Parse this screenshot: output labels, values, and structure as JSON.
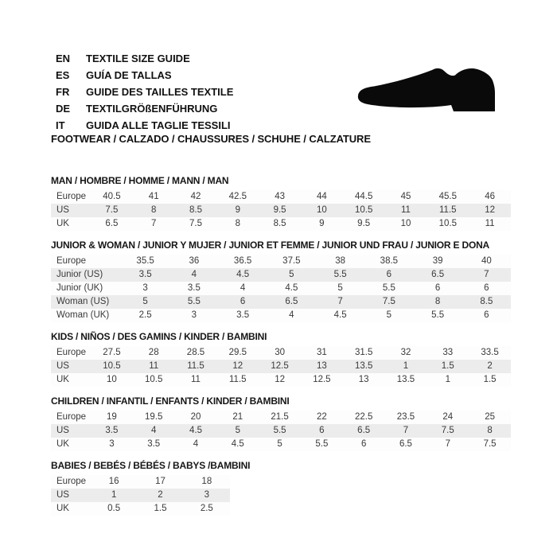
{
  "header": {
    "languages": [
      {
        "code": "EN",
        "text": "TEXTILE SIZE GUIDE"
      },
      {
        "code": "ES",
        "text": "GUÍA DE TALLAS"
      },
      {
        "code": "FR",
        "text": "GUIDE DES TAILLES TEXTILE"
      },
      {
        "code": "DE",
        "text": "TEXTILGRÖßENFÜHRUNG"
      },
      {
        "code": "IT",
        "text": "GUIDA ALLE TAGLIE TESSILI"
      }
    ],
    "category_title": "FOOTWEAR / CALZADO / CHAUSSURES / SCHUHE / CALZATURE",
    "shoe_icon": "dress-shoe-silhouette"
  },
  "colors": {
    "page_bg": "#ffffff",
    "header_row_bg": "#c6c6c6",
    "alt_row_bg": "#ececec",
    "cell_text": "#3a3a3a",
    "title_text": "#161616",
    "shoe": "#0a0a0a"
  },
  "size_tables": [
    {
      "title": "MAN / HOMBRE / HOMME / MANN / MAN",
      "rows": [
        {
          "label": "Europe",
          "values": [
            "40.5",
            "41",
            "42",
            "42.5",
            "43",
            "44",
            "44.5",
            "45",
            "45.5",
            "46"
          ]
        },
        {
          "label": "US",
          "values": [
            "7.5",
            "8",
            "8.5",
            "9",
            "9.5",
            "10",
            "10.5",
            "11",
            "11.5",
            "12"
          ]
        },
        {
          "label": "UK",
          "values": [
            "6.5",
            "7",
            "7.5",
            "8",
            "8.5",
            "9",
            "9.5",
            "10",
            "10.5",
            "11"
          ]
        }
      ]
    },
    {
      "title": "JUNIOR & WOMAN / JUNIOR Y MUJER / JUNIOR ET FEMME / JUNIOR UND FRAU / JUNIOR E DONA",
      "rows": [
        {
          "label": "Europe",
          "values": [
            "35.5",
            "36",
            "36.5",
            "37.5",
            "38",
            "38.5",
            "39",
            "40"
          ]
        },
        {
          "label": "Junior (US)",
          "values": [
            "3.5",
            "4",
            "4.5",
            "5",
            "5.5",
            "6",
            "6.5",
            "7"
          ]
        },
        {
          "label": "Junior (UK)",
          "values": [
            "3",
            "3.5",
            "4",
            "4.5",
            "5",
            "5.5",
            "6",
            "6"
          ]
        },
        {
          "label": "Woman (US)",
          "values": [
            "5",
            "5.5",
            "6",
            "6.5",
            "7",
            "7.5",
            "8",
            "8.5"
          ]
        },
        {
          "label": "Woman (UK)",
          "values": [
            "2.5",
            "3",
            "3.5",
            "4",
            "4.5",
            "5",
            "5.5",
            "6"
          ]
        }
      ]
    },
    {
      "title": "KIDS / NIÑOS / DES GAMINS / KINDER / BAMBINI",
      "rows": [
        {
          "label": "Europe",
          "values": [
            "27.5",
            "28",
            "28.5",
            "29.5",
            "30",
            "31",
            "31.5",
            "32",
            "33",
            "33.5"
          ]
        },
        {
          "label": "US",
          "values": [
            "10.5",
            "11",
            "11.5",
            "12",
            "12.5",
            "13",
            "13.5",
            "1",
            "1.5",
            "2"
          ]
        },
        {
          "label": "UK",
          "values": [
            "10",
            "10.5",
            "11",
            "11.5",
            "12",
            "12.5",
            "13",
            "13.5",
            "1",
            "1.5"
          ]
        }
      ]
    },
    {
      "title": "CHILDREN / INFANTIL / ENFANTS / KINDER / BAMBINI",
      "rows": [
        {
          "label": "Europe",
          "values": [
            "19",
            "19.5",
            "20",
            "21",
            "21.5",
            "22",
            "22.5",
            "23.5",
            "24",
            "25"
          ]
        },
        {
          "label": "US",
          "values": [
            "3.5",
            "4",
            "4.5",
            "5",
            "5.5",
            "6",
            "6.5",
            "7",
            "7.5",
            "8"
          ]
        },
        {
          "label": "UK",
          "values": [
            "3",
            "3.5",
            "4",
            "4.5",
            "5",
            "5.5",
            "6",
            "6.5",
            "7",
            "7.5"
          ]
        }
      ]
    },
    {
      "title": "BABIES / BEBÉS / BÉBÉS / BABYS /BAMBINI",
      "rows": [
        {
          "label": "Europe",
          "values": [
            "16",
            "17",
            "18"
          ]
        },
        {
          "label": "US",
          "values": [
            "1",
            "2",
            "3"
          ]
        },
        {
          "label": "UK",
          "values": [
            "0.5",
            "1.5",
            "2.5"
          ]
        }
      ]
    }
  ]
}
